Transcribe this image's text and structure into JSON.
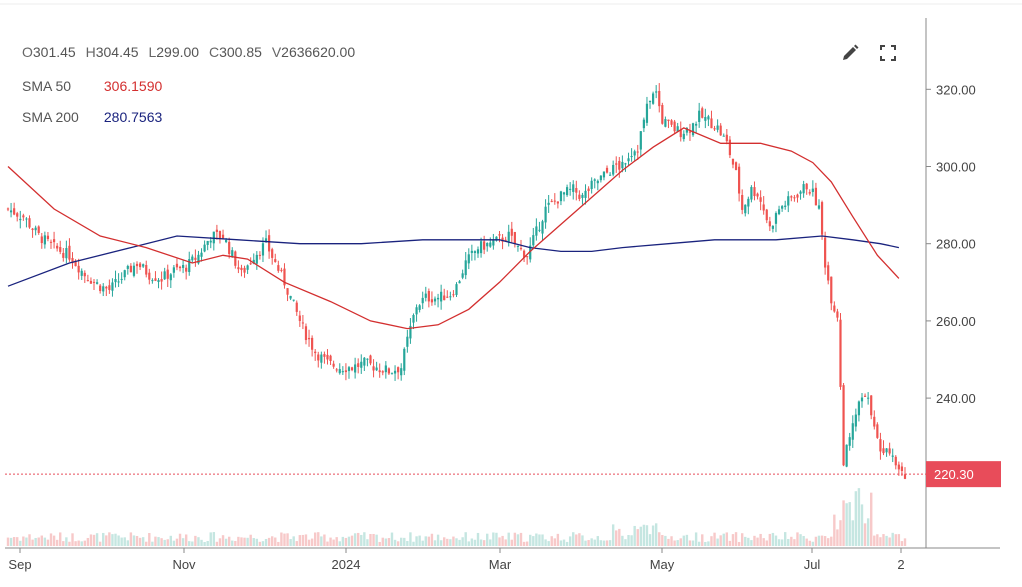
{
  "ohlc": {
    "open_label": "O",
    "open": "301.45",
    "high_label": "H",
    "high": "304.45",
    "low_label": "L",
    "low": "299.00",
    "close_label": "C",
    "close": "300.85",
    "volume_label": "V",
    "volume": "2636620.00"
  },
  "indicators": [
    {
      "name": "SMA 50",
      "value": "306.1590",
      "color": "#d32f2f"
    },
    {
      "name": "SMA 200",
      "value": "280.7563",
      "color": "#1a237e"
    }
  ],
  "toolbar": {
    "edit_icon": "pencil-icon",
    "fullscreen_icon": "fullscreen-icon"
  },
  "colors": {
    "up": "#26a69a",
    "down": "#ef5350",
    "price_tag": "#e84c5a"
  },
  "last_price_label": "220.30",
  "chart_data": {
    "type": "candlestick",
    "y_ticks": [
      "320.00",
      "300.00",
      "280.00",
      "260.00",
      "240.00"
    ],
    "x_ticks": [
      "Sep",
      "Nov",
      "2024",
      "Mar",
      "May",
      "Jul",
      "2"
    ],
    "ylim": [
      209,
      333
    ],
    "last_price": 220.3,
    "close_path": [
      [
        0,
        289
      ],
      [
        5,
        287
      ],
      [
        10,
        282
      ],
      [
        15,
        279
      ],
      [
        20,
        277
      ],
      [
        25,
        272
      ],
      [
        30,
        269
      ],
      [
        33,
        268
      ],
      [
        38,
        272
      ],
      [
        42,
        275
      ],
      [
        46,
        272
      ],
      [
        50,
        271
      ],
      [
        54,
        273
      ],
      [
        58,
        274
      ],
      [
        62,
        277
      ],
      [
        66,
        282
      ],
      [
        70,
        282
      ],
      [
        73,
        277
      ],
      [
        76,
        272
      ],
      [
        80,
        277
      ],
      [
        84,
        280
      ],
      [
        87,
        275
      ],
      [
        90,
        270
      ],
      [
        93,
        264
      ],
      [
        96,
        258
      ],
      [
        100,
        252
      ],
      [
        104,
        249
      ],
      [
        108,
        248
      ],
      [
        112,
        248
      ],
      [
        116,
        249
      ],
      [
        120,
        248
      ],
      [
        124,
        247
      ],
      [
        128,
        248
      ],
      [
        130,
        255
      ],
      [
        133,
        264
      ],
      [
        136,
        266
      ],
      [
        140,
        266
      ],
      [
        144,
        267
      ],
      [
        146,
        269
      ],
      [
        149,
        275
      ],
      [
        153,
        279
      ],
      [
        157,
        280
      ],
      [
        160,
        281
      ],
      [
        163,
        282
      ],
      [
        166,
        279
      ],
      [
        169,
        277
      ],
      [
        172,
        283
      ],
      [
        175,
        289
      ],
      [
        178,
        291
      ],
      [
        181,
        293
      ],
      [
        184,
        294
      ],
      [
        187,
        292
      ],
      [
        190,
        295
      ],
      [
        193,
        297
      ],
      [
        196,
        299
      ],
      [
        199,
        300
      ],
      [
        202,
        303
      ],
      [
        205,
        305
      ],
      [
        207,
        312
      ],
      [
        209,
        318
      ],
      [
        211,
        319
      ],
      [
        213,
        312
      ],
      [
        216,
        310
      ],
      [
        219,
        309
      ],
      [
        222,
        310
      ],
      [
        225,
        313
      ],
      [
        228,
        312
      ],
      [
        231,
        310
      ],
      [
        234,
        306
      ],
      [
        237,
        298
      ],
      [
        239,
        289
      ],
      [
        242,
        294
      ],
      [
        244,
        293
      ],
      [
        246,
        289
      ],
      [
        248,
        284
      ],
      [
        251,
        289
      ],
      [
        254,
        291
      ],
      [
        257,
        293
      ],
      [
        260,
        295
      ],
      [
        262,
        293
      ],
      [
        264,
        289
      ],
      [
        266,
        275
      ],
      [
        268,
        266
      ],
      [
        270,
        261
      ],
      [
        272,
        224
      ],
      [
        274,
        229
      ],
      [
        276,
        236
      ],
      [
        278,
        240
      ],
      [
        280,
        239
      ],
      [
        282,
        234
      ],
      [
        284,
        226
      ],
      [
        286,
        228
      ],
      [
        288,
        226
      ],
      [
        290,
        222
      ],
      [
        292,
        220.3
      ]
    ],
    "sma50": [
      [
        0,
        300
      ],
      [
        15,
        289
      ],
      [
        30,
        282
      ],
      [
        45,
        279
      ],
      [
        60,
        275
      ],
      [
        70,
        277
      ],
      [
        78,
        276
      ],
      [
        90,
        270
      ],
      [
        105,
        265
      ],
      [
        118,
        260
      ],
      [
        130,
        258
      ],
      [
        140,
        259
      ],
      [
        150,
        263
      ],
      [
        160,
        270
      ],
      [
        170,
        278
      ],
      [
        180,
        285
      ],
      [
        190,
        292
      ],
      [
        200,
        299
      ],
      [
        210,
        305
      ],
      [
        220,
        310
      ],
      [
        232,
        306
      ],
      [
        245,
        306
      ],
      [
        255,
        304
      ],
      [
        262,
        301
      ],
      [
        268,
        296
      ],
      [
        275,
        287
      ],
      [
        283,
        277
      ],
      [
        290,
        271
      ]
    ],
    "sma200": [
      [
        0,
        269
      ],
      [
        20,
        275
      ],
      [
        40,
        279
      ],
      [
        55,
        282
      ],
      [
        75,
        281
      ],
      [
        95,
        280
      ],
      [
        115,
        280
      ],
      [
        135,
        281
      ],
      [
        150,
        281
      ],
      [
        160,
        281
      ],
      [
        170,
        279
      ],
      [
        180,
        278
      ],
      [
        190,
        278
      ],
      [
        200,
        279
      ],
      [
        215,
        280
      ],
      [
        230,
        281
      ],
      [
        250,
        281
      ],
      [
        265,
        282
      ],
      [
        275,
        281
      ],
      [
        284,
        280
      ],
      [
        290,
        279
      ]
    ],
    "volume": {
      "typical": 2636620,
      "spike_range": "Jun-Jul"
    }
  }
}
